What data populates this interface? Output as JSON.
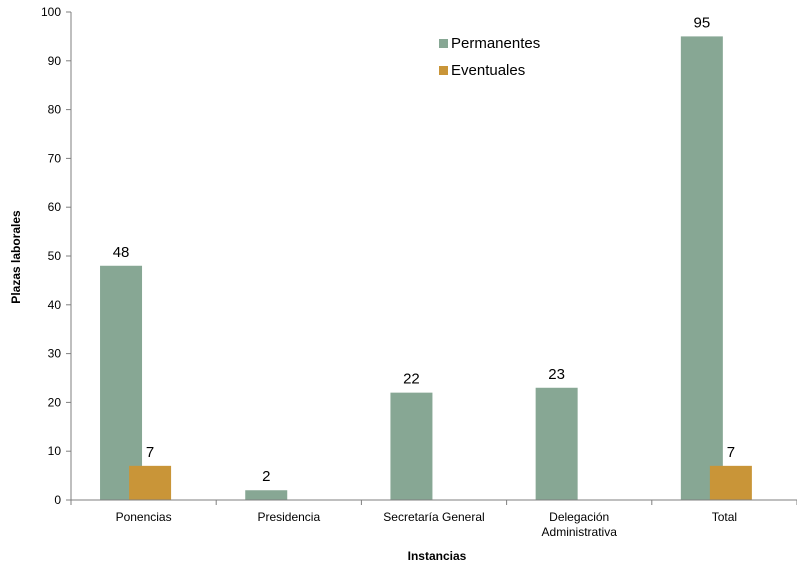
{
  "chart_data": {
    "type": "bar",
    "title": "",
    "xlabel": "Instancias",
    "ylabel": "Plazas laborales",
    "ylim": [
      0,
      100
    ],
    "yticks": [
      0,
      10,
      20,
      30,
      40,
      50,
      60,
      70,
      80,
      90,
      100
    ],
    "grid": false,
    "legend_position": "top-center",
    "categories": [
      [
        "Ponencias"
      ],
      [
        "Presidencia"
      ],
      [
        "Secretaría General"
      ],
      [
        "Delegación",
        "Administrativa"
      ],
      [
        "Total"
      ]
    ],
    "series": [
      {
        "name": "Permanentes",
        "color": "#87a794",
        "values": [
          48,
          2,
          22,
          23,
          95
        ]
      },
      {
        "name": "Eventuales",
        "color": "#c99538",
        "values": [
          7,
          null,
          null,
          null,
          7
        ]
      }
    ]
  }
}
